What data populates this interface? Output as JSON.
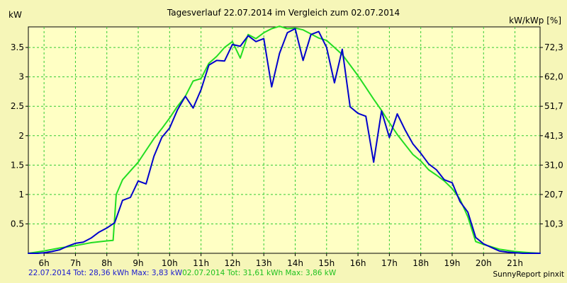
{
  "chart_data": {
    "type": "line",
    "title": "Tagesverlauf 22.07.2014 im Vergleich zum 02.07.2014",
    "ylabel_left": "kW",
    "ylabel_right": "kW/kWp [%]",
    "xlim": [
      5.5,
      21.8
    ],
    "ylim": [
      0,
      3.85
    ],
    "grid": true,
    "x_ticks": [
      6,
      7,
      8,
      9,
      10,
      11,
      12,
      13,
      14,
      15,
      16,
      17,
      18,
      19,
      20,
      21
    ],
    "x_tick_labels": [
      "6h",
      "7h",
      "8h",
      "9h",
      "10h",
      "11h",
      "12h",
      "13h",
      "14h",
      "15h",
      "16h",
      "17h",
      "18h",
      "19h",
      "20h",
      "21h"
    ],
    "y_ticks": [
      0.5,
      1,
      1.5,
      2,
      2.5,
      3,
      3.5
    ],
    "y_tick_labels": [
      "0.5",
      "1",
      "1.5",
      "2",
      "2.5",
      "3",
      "3.5"
    ],
    "y2_ticks": [
      0.5,
      1,
      1.5,
      2,
      2.5,
      3,
      3.5
    ],
    "y2_tick_labels": [
      "10,3",
      "20,7",
      "31,0",
      "41,3",
      "51,7",
      "62,0",
      "72,3"
    ],
    "series": [
      {
        "color": "#0000cc",
        "x": [
          5.5,
          5.8,
          6.0,
          6.25,
          6.5,
          6.75,
          7.0,
          7.25,
          7.5,
          7.75,
          8.0,
          8.25,
          8.5,
          8.75,
          9.0,
          9.25,
          9.5,
          9.75,
          10.0,
          10.25,
          10.5,
          10.75,
          11.0,
          11.25,
          11.5,
          11.75,
          12.0,
          12.25,
          12.5,
          12.75,
          13.0,
          13.25,
          13.5,
          13.75,
          14.0,
          14.25,
          14.5,
          14.75,
          15.0,
          15.25,
          15.5,
          15.75,
          16.0,
          16.25,
          16.5,
          16.75,
          17.0,
          17.25,
          17.5,
          17.75,
          18.0,
          18.25,
          18.5,
          18.75,
          19.0,
          19.25,
          19.5,
          19.75,
          20.0,
          20.25,
          20.5,
          20.75,
          21.0,
          21.25,
          21.5,
          21.8
        ],
        "y": [
          0.0,
          0.0,
          0.01,
          0.03,
          0.06,
          0.12,
          0.17,
          0.19,
          0.26,
          0.36,
          0.43,
          0.52,
          0.9,
          0.95,
          1.23,
          1.18,
          1.65,
          1.97,
          2.13,
          2.44,
          2.67,
          2.47,
          2.78,
          3.2,
          3.28,
          3.27,
          3.55,
          3.52,
          3.7,
          3.6,
          3.65,
          2.83,
          3.4,
          3.75,
          3.82,
          3.28,
          3.72,
          3.77,
          3.5,
          2.9,
          3.47,
          2.49,
          2.38,
          2.33,
          1.55,
          2.42,
          1.97,
          2.37,
          2.1,
          1.86,
          1.7,
          1.52,
          1.42,
          1.25,
          1.2,
          0.88,
          0.7,
          0.27,
          0.16,
          0.1,
          0.04,
          0.02,
          0.01,
          0.0,
          0.0,
          0.0
        ]
      },
      {
        "color": "#22dd22",
        "x": [
          5.5,
          6.0,
          6.5,
          7.0,
          7.5,
          8.0,
          8.2,
          8.3,
          8.5,
          8.75,
          9.0,
          9.25,
          9.5,
          9.75,
          10.0,
          10.25,
          10.5,
          10.75,
          11.0,
          11.25,
          11.5,
          11.75,
          12.0,
          12.25,
          12.5,
          12.75,
          13.0,
          13.25,
          13.5,
          13.75,
          14.0,
          14.25,
          14.5,
          14.75,
          15.0,
          15.25,
          15.5,
          15.75,
          16.0,
          16.25,
          16.5,
          16.75,
          17.0,
          17.25,
          17.5,
          17.75,
          18.0,
          18.25,
          18.5,
          18.75,
          19.0,
          19.25,
          19.5,
          19.75,
          20.0,
          20.5,
          21.0,
          21.5,
          21.8
        ],
        "y": [
          0.0,
          0.04,
          0.09,
          0.13,
          0.18,
          0.21,
          0.22,
          1.0,
          1.25,
          1.4,
          1.55,
          1.75,
          1.95,
          2.12,
          2.3,
          2.5,
          2.67,
          2.93,
          2.97,
          3.23,
          3.35,
          3.5,
          3.6,
          3.32,
          3.72,
          3.65,
          3.75,
          3.82,
          3.86,
          3.82,
          3.83,
          3.8,
          3.73,
          3.66,
          3.62,
          3.5,
          3.38,
          3.2,
          3.02,
          2.82,
          2.62,
          2.43,
          2.22,
          2.02,
          1.85,
          1.68,
          1.57,
          1.42,
          1.33,
          1.23,
          1.1,
          0.92,
          0.62,
          0.2,
          0.15,
          0.07,
          0.03,
          0.01,
          0.0
        ]
      }
    ]
  },
  "footer": {
    "series1_text": "22.07.2014 Tot: 28,36 kWh Max: 3,83 kW",
    "series2_text": "02.07.2014 Tot: 31,61 kWh Max: 3,86 kW",
    "credit": "SunnyReport pinxit"
  }
}
